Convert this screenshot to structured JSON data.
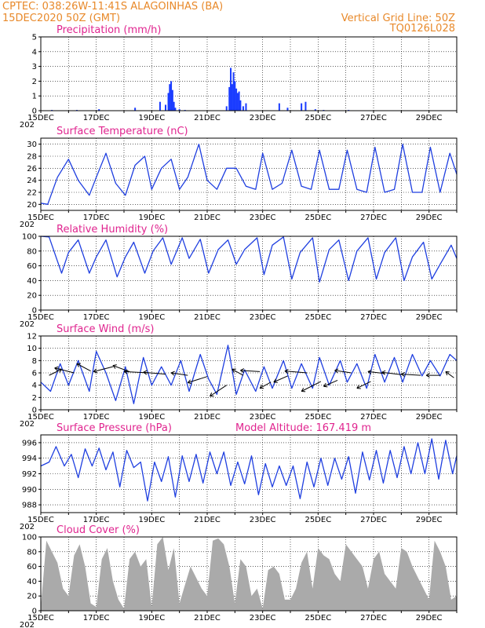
{
  "header": {
    "line1_left": "CPTEC:    038:26W-11:41S   ALAGOINHAS (BA)",
    "line2_left": "15DEC2020 50Z (GMT)",
    "line1_right": "Vertical Grid Line: 50Z",
    "line2_right": "TQ0126L028"
  },
  "x_ticks": [
    "15DEC",
    "17DEC",
    "19DEC",
    "21DEC",
    "23DEC",
    "25DEC",
    "27DEC",
    "29DEC"
  ],
  "year_fragment": "202",
  "colors": {
    "header": "#e8892a",
    "title": "#e0248f",
    "line": "#1f3fe0",
    "bar": "#1a3cff",
    "cloud": "#aaaaaa",
    "wind": "#000000"
  },
  "chart_data": [
    {
      "type": "bar",
      "title": "Precipitation (mm/h)",
      "ylim": [
        0,
        5
      ],
      "yticks": [
        0,
        1,
        2,
        3,
        4,
        5
      ],
      "x_unit": "days since 15DEC",
      "x": [
        0.4,
        1.3,
        2.1,
        3.4,
        4.3,
        4.5,
        4.6,
        4.65,
        4.7,
        4.75,
        4.8,
        4.85,
        5.0,
        5.2,
        6.7,
        6.8,
        6.85,
        6.9,
        6.95,
        7.0,
        7.05,
        7.1,
        7.15,
        7.2,
        7.3,
        7.4,
        8.6,
        8.9,
        9.4,
        9.55,
        9.9,
        10.2,
        11.1
      ],
      "values": [
        0.05,
        0.05,
        0.1,
        0.2,
        0.6,
        0.4,
        1.2,
        1.8,
        2.0,
        1.4,
        0.6,
        0.2,
        0.1,
        0.05,
        0.3,
        1.6,
        2.9,
        1.8,
        2.6,
        2.0,
        1.5,
        1.2,
        1.3,
        0.7,
        0.3,
        0.5,
        0.5,
        0.2,
        0.5,
        0.6,
        0.1,
        0.05,
        0.05
      ]
    },
    {
      "type": "line",
      "title": "Surface Temperature (nC)",
      "ylim": [
        19,
        31
      ],
      "yticks": [
        20,
        22,
        24,
        26,
        28,
        30
      ],
      "x_unit": "days since 15DEC",
      "x": [
        0,
        0.25,
        0.6,
        1.0,
        1.35,
        1.75,
        2.0,
        2.35,
        2.7,
        3.05,
        3.4,
        3.75,
        4.0,
        4.35,
        4.7,
        5.0,
        5.3,
        5.7,
        6.0,
        6.35,
        6.7,
        7.05,
        7.4,
        7.75,
        8.0,
        8.35,
        8.7,
        9.05,
        9.4,
        9.75,
        10.05,
        10.4,
        10.75,
        11.05,
        11.4,
        11.75,
        12.05,
        12.4,
        12.75,
        13.05,
        13.4,
        13.75,
        14.05,
        14.4,
        14.75,
        15.0
      ],
      "series": [
        {
          "values": [
            20.2,
            20.0,
            24.5,
            27.5,
            24.0,
            21.5,
            24.5,
            28.5,
            23.5,
            21.5,
            26.5,
            28.0,
            22.5,
            26.0,
            27.5,
            22.5,
            24.5,
            30.0,
            24.0,
            22.5,
            26.0,
            26.0,
            23.0,
            22.5,
            28.5,
            22.5,
            23.5,
            29.0,
            23.0,
            22.5,
            29.0,
            22.5,
            22.5,
            29.0,
            22.5,
            22.0,
            29.5,
            22.0,
            22.5,
            30.0,
            22.0,
            22.0,
            29.5,
            22.0,
            28.5,
            25.0
          ]
        }
      ]
    },
    {
      "type": "line",
      "title": "Relative Humidity (%)",
      "ylim": [
        0,
        100
      ],
      "yticks": [
        0,
        20,
        40,
        60,
        80,
        100
      ],
      "x_unit": "days since 15DEC",
      "x": [
        0,
        0.3,
        0.75,
        1.0,
        1.35,
        1.75,
        2.0,
        2.35,
        2.75,
        3.05,
        3.35,
        3.75,
        4.05,
        4.4,
        4.7,
        5.1,
        5.35,
        5.75,
        6.05,
        6.4,
        6.75,
        7.05,
        7.35,
        7.8,
        8.05,
        8.35,
        8.75,
        9.05,
        9.35,
        9.8,
        10.05,
        10.4,
        10.75,
        11.1,
        11.4,
        11.8,
        12.1,
        12.4,
        12.8,
        13.1,
        13.4,
        13.8,
        14.1,
        14.4,
        14.8,
        15.0
      ],
      "series": [
        {
          "values": [
            100,
            99,
            50,
            78,
            95,
            50,
            72,
            95,
            45,
            72,
            92,
            50,
            80,
            98,
            62,
            98,
            70,
            96,
            50,
            82,
            95,
            62,
            82,
            98,
            48,
            88,
            99,
            42,
            78,
            98,
            38,
            82,
            95,
            40,
            80,
            98,
            42,
            78,
            98,
            40,
            72,
            92,
            42,
            62,
            88,
            70
          ]
        }
      ]
    },
    {
      "type": "line",
      "title": "Surface Wind (m/s)",
      "ylim": [
        0,
        12
      ],
      "yticks": [
        0,
        2,
        4,
        6,
        8,
        10,
        12
      ],
      "x_unit": "days since 15DEC",
      "x": [
        0,
        0.35,
        0.7,
        1.0,
        1.35,
        1.75,
        2.0,
        2.35,
        2.7,
        3.05,
        3.35,
        3.7,
        4.0,
        4.35,
        4.7,
        5.05,
        5.35,
        5.75,
        6.05,
        6.35,
        6.75,
        7.05,
        7.35,
        7.75,
        8.05,
        8.35,
        8.75,
        9.05,
        9.4,
        9.8,
        10.05,
        10.4,
        10.8,
        11.05,
        11.4,
        11.75,
        12.05,
        12.4,
        12.75,
        13.05,
        13.4,
        13.75,
        14.05,
        14.4,
        14.75,
        15.0
      ],
      "series": [
        {
          "values": [
            4.5,
            3.0,
            7.5,
            4.0,
            8.0,
            3.0,
            9.5,
            6.0,
            1.5,
            7.0,
            1.0,
            8.5,
            4.0,
            7.0,
            4.0,
            8.0,
            3.0,
            9.0,
            5.0,
            2.5,
            10.5,
            2.5,
            6.5,
            3.0,
            7.0,
            3.5,
            8.0,
            3.5,
            7.5,
            3.5,
            8.5,
            4.0,
            8.0,
            4.5,
            7.5,
            3.5,
            9.0,
            4.5,
            8.5,
            4.5,
            9.0,
            5.5,
            8.0,
            5.5,
            9.0,
            8.0
          ]
        }
      ]
    }
  ],
  "wind_barbs": [
    {
      "x": 0.3,
      "y": 5.6,
      "dx": 0.45,
      "dy": 1.0
    },
    {
      "x": 1.2,
      "y": 6.0,
      "dx": -0.7,
      "dy": 0.8
    },
    {
      "x": 1.8,
      "y": 6.3,
      "dx": -0.5,
      "dy": 1.2
    },
    {
      "x": 2.6,
      "y": 7.0,
      "dx": -0.7,
      "dy": -0.8
    },
    {
      "x": 3.2,
      "y": 6.2,
      "dx": -0.6,
      "dy": 1.0
    },
    {
      "x": 3.9,
      "y": 6.0,
      "dx": -0.9,
      "dy": 0.2
    },
    {
      "x": 4.5,
      "y": 5.8,
      "dx": -0.8,
      "dy": 0.3
    },
    {
      "x": 5.3,
      "y": 5.6,
      "dx": -0.6,
      "dy": 0.4
    },
    {
      "x": 6.0,
      "y": 5.4,
      "dx": -0.7,
      "dy": -1.0
    },
    {
      "x": 6.7,
      "y": 4.0,
      "dx": -0.6,
      "dy": -1.8
    },
    {
      "x": 7.3,
      "y": 5.6,
      "dx": -0.4,
      "dy": 1.0
    },
    {
      "x": 7.9,
      "y": 6.2,
      "dx": -0.7,
      "dy": 0.2
    },
    {
      "x": 8.3,
      "y": 4.5,
      "dx": -0.4,
      "dy": -1.0
    },
    {
      "x": 8.9,
      "y": 5.5,
      "dx": -0.5,
      "dy": -1.0
    },
    {
      "x": 9.6,
      "y": 6.0,
      "dx": -0.8,
      "dy": 0.3
    },
    {
      "x": 10.1,
      "y": 4.6,
      "dx": -0.7,
      "dy": -1.6
    },
    {
      "x": 10.7,
      "y": 4.8,
      "dx": -0.5,
      "dy": -1.0
    },
    {
      "x": 11.2,
      "y": 6.0,
      "dx": -0.6,
      "dy": 0.4
    },
    {
      "x": 11.9,
      "y": 4.6,
      "dx": -0.5,
      "dy": -1.1
    },
    {
      "x": 12.4,
      "y": 5.9,
      "dx": -0.6,
      "dy": 0.3
    },
    {
      "x": 13.0,
      "y": 5.7,
      "dx": -0.7,
      "dy": 0.4
    },
    {
      "x": 13.7,
      "y": 5.6,
      "dx": -0.7,
      "dy": 0.2
    },
    {
      "x": 14.4,
      "y": 5.6,
      "dx": -0.5,
      "dy": 0.0
    },
    {
      "x": 14.9,
      "y": 5.2,
      "dx": -0.3,
      "dy": 1.0
    }
  ],
  "pressure_chart": {
    "type": "line",
    "title": "Surface Pressure (hPa)",
    "annotation": "Model Altitude: 167.419  m",
    "ylim": [
      987,
      997
    ],
    "yticks": [
      988,
      990,
      992,
      994,
      996
    ],
    "x_unit": "days since 15DEC",
    "x": [
      0,
      0.3,
      0.55,
      0.85,
      1.1,
      1.35,
      1.6,
      1.85,
      2.1,
      2.35,
      2.6,
      2.85,
      3.1,
      3.35,
      3.6,
      3.85,
      4.1,
      4.35,
      4.6,
      4.85,
      5.1,
      5.35,
      5.6,
      5.85,
      6.1,
      6.35,
      6.6,
      6.85,
      7.1,
      7.35,
      7.6,
      7.85,
      8.1,
      8.35,
      8.6,
      8.85,
      9.1,
      9.35,
      9.6,
      9.85,
      10.1,
      10.35,
      10.6,
      10.85,
      11.1,
      11.35,
      11.6,
      11.85,
      12.1,
      12.35,
      12.6,
      12.85,
      13.1,
      13.35,
      13.6,
      13.85,
      14.1,
      14.35,
      14.6,
      14.85,
      15.0
    ],
    "series": [
      {
        "values": [
          993,
          993.5,
          995.5,
          993,
          994.5,
          991.5,
          995.2,
          993,
          995.3,
          992.5,
          994.8,
          990.3,
          995,
          992.8,
          993.5,
          988.5,
          993.5,
          991,
          994.2,
          989,
          994.3,
          991,
          994.5,
          990.8,
          994.8,
          992,
          994.8,
          990.5,
          993.5,
          990.7,
          994.3,
          989.3,
          993.3,
          990.3,
          993,
          990.5,
          993,
          988.8,
          993.5,
          990.3,
          994,
          990.5,
          994,
          991.3,
          994.2,
          989.5,
          994.8,
          991.2,
          995,
          990.8,
          995,
          991.5,
          995.5,
          992,
          996,
          992,
          996.5,
          991.3,
          996.3,
          992,
          994.3
        ]
      }
    ]
  },
  "cloud_chart": {
    "type": "area",
    "title": "Cloud Cover (%)",
    "ylim": [
      0,
      100
    ],
    "yticks": [
      0,
      20,
      40,
      60,
      80,
      100
    ],
    "x_unit": "days since 15DEC",
    "x": [
      0,
      0.2,
      0.4,
      0.6,
      0.8,
      1.0,
      1.2,
      1.4,
      1.6,
      1.8,
      2.0,
      2.2,
      2.4,
      2.6,
      2.8,
      3.0,
      3.2,
      3.4,
      3.6,
      3.8,
      4.0,
      4.2,
      4.4,
      4.6,
      4.8,
      5.0,
      5.2,
      5.4,
      5.6,
      5.8,
      6.0,
      6.2,
      6.4,
      6.6,
      6.8,
      7.0,
      7.2,
      7.4,
      7.6,
      7.8,
      8.0,
      8.2,
      8.4,
      8.6,
      8.8,
      9.0,
      9.2,
      9.4,
      9.6,
      9.8,
      10.0,
      10.2,
      10.4,
      10.6,
      10.8,
      11.0,
      11.2,
      11.4,
      11.6,
      11.8,
      12.0,
      12.2,
      12.4,
      12.6,
      12.8,
      13.0,
      13.2,
      13.4,
      13.6,
      13.8,
      14.0,
      14.2,
      14.4,
      14.6,
      14.8,
      15.0
    ],
    "values": [
      5,
      95,
      80,
      65,
      30,
      20,
      75,
      90,
      60,
      10,
      5,
      70,
      85,
      40,
      15,
      3,
      70,
      80,
      60,
      70,
      5,
      90,
      100,
      55,
      85,
      10,
      35,
      60,
      45,
      30,
      20,
      95,
      98,
      90,
      60,
      10,
      70,
      60,
      20,
      30,
      3,
      55,
      60,
      50,
      15,
      15,
      30,
      65,
      80,
      30,
      85,
      75,
      70,
      50,
      40,
      90,
      80,
      70,
      60,
      30,
      70,
      80,
      50,
      40,
      30,
      85,
      80,
      60,
      45,
      30,
      15,
      95,
      80,
      60,
      15,
      20
    ]
  }
}
